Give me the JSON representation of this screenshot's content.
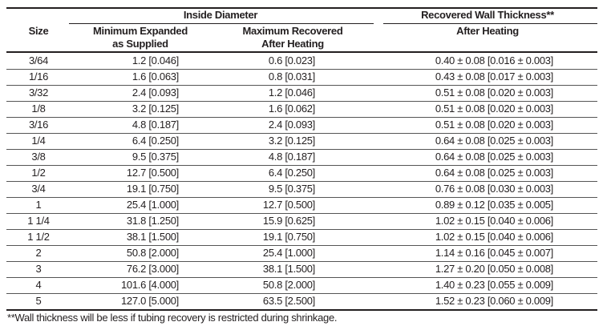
{
  "header": {
    "size": "Size",
    "inside_diameter": "Inside Diameter",
    "min_expanded": "Minimum Expanded\nas Supplied",
    "max_recovered": "Maximum Recovered\nAfter Heating",
    "wall_thickness": "Recovered Wall Thickness**",
    "wall_after_heating": "After Heating"
  },
  "rows": [
    {
      "size": "3/64",
      "min": "1.2 [0.046]",
      "max": "0.6 [0.023]",
      "wall": "0.40 ± 0.08 [0.016 ± 0.003]"
    },
    {
      "size": "1/16",
      "min": "1.6 [0.063]",
      "max": "0.8 [0.031]",
      "wall": "0.43 ± 0.08 [0.017 ± 0.003]"
    },
    {
      "size": "3/32",
      "min": "2.4 [0.093]",
      "max": "1.2 [0.046]",
      "wall": "0.51 ± 0.08 [0.020 ± 0.003]"
    },
    {
      "size": "1/8",
      "min": "3.2 [0.125]",
      "max": "1.6 [0.062]",
      "wall": "0.51 ± 0.08 [0.020 ± 0.003]"
    },
    {
      "size": "3/16",
      "min": "4.8 [0.187]",
      "max": "2.4 [0.093]",
      "wall": "0.51 ± 0.08 [0.020 ± 0.003]"
    },
    {
      "size": "1/4",
      "min": "6.4 [0.250]",
      "max": "3.2 [0.125]",
      "wall": "0.64 ± 0.08 [0.025 ± 0.003]"
    },
    {
      "size": "3/8",
      "min": "9.5 [0.375]",
      "max": "4.8 [0.187]",
      "wall": "0.64 ± 0.08 [0.025 ± 0.003]"
    },
    {
      "size": "1/2",
      "min": "12.7 [0.500]",
      "max": "6.4 [0.250]",
      "wall": "0.64 ± 0.08 [0.025 ± 0.003]"
    },
    {
      "size": "3/4",
      "min": "19.1 [0.750]",
      "max": "9.5 [0.375]",
      "wall": "0.76 ± 0.08 [0.030 ± 0.003]"
    },
    {
      "size": "1",
      "min": "25.4 [1.000]",
      "max": "12.7 [0.500]",
      "wall": "0.89 ± 0.12 [0.035 ± 0.005]"
    },
    {
      "size": "1 1/4",
      "min": "31.8 [1.250]",
      "max": "15.9 [0.625]",
      "wall": "1.02 ± 0.15 [0.040 ± 0.006]"
    },
    {
      "size": "1 1/2",
      "min": "38.1 [1.500]",
      "max": "19.1 [0.750]",
      "wall": "1.02 ± 0.15 [0.040 ± 0.006]"
    },
    {
      "size": "2",
      "min": "50.8 [2.000]",
      "max": "25.4 [1.000]",
      "wall": "1.14 ± 0.16 [0.045 ± 0.007]"
    },
    {
      "size": "3",
      "min": "76.2 [3.000]",
      "max": "38.1 [1.500]",
      "wall": "1.27 ± 0.20 [0.050 ± 0.008]"
    },
    {
      "size": "4",
      "min": "101.6 [4.000]",
      "max": "50.8 [2.000]",
      "wall": "1.40 ± 0.23 [0.055 ± 0.009]"
    },
    {
      "size": "5",
      "min": "127.0 [5.000]",
      "max": "63.5 [2.500]",
      "wall": "1.52 ± 0.23 [0.060 ± 0.009]"
    }
  ],
  "footnote": "**Wall thickness will be less if tubing recovery is restricted during shrinkage."
}
